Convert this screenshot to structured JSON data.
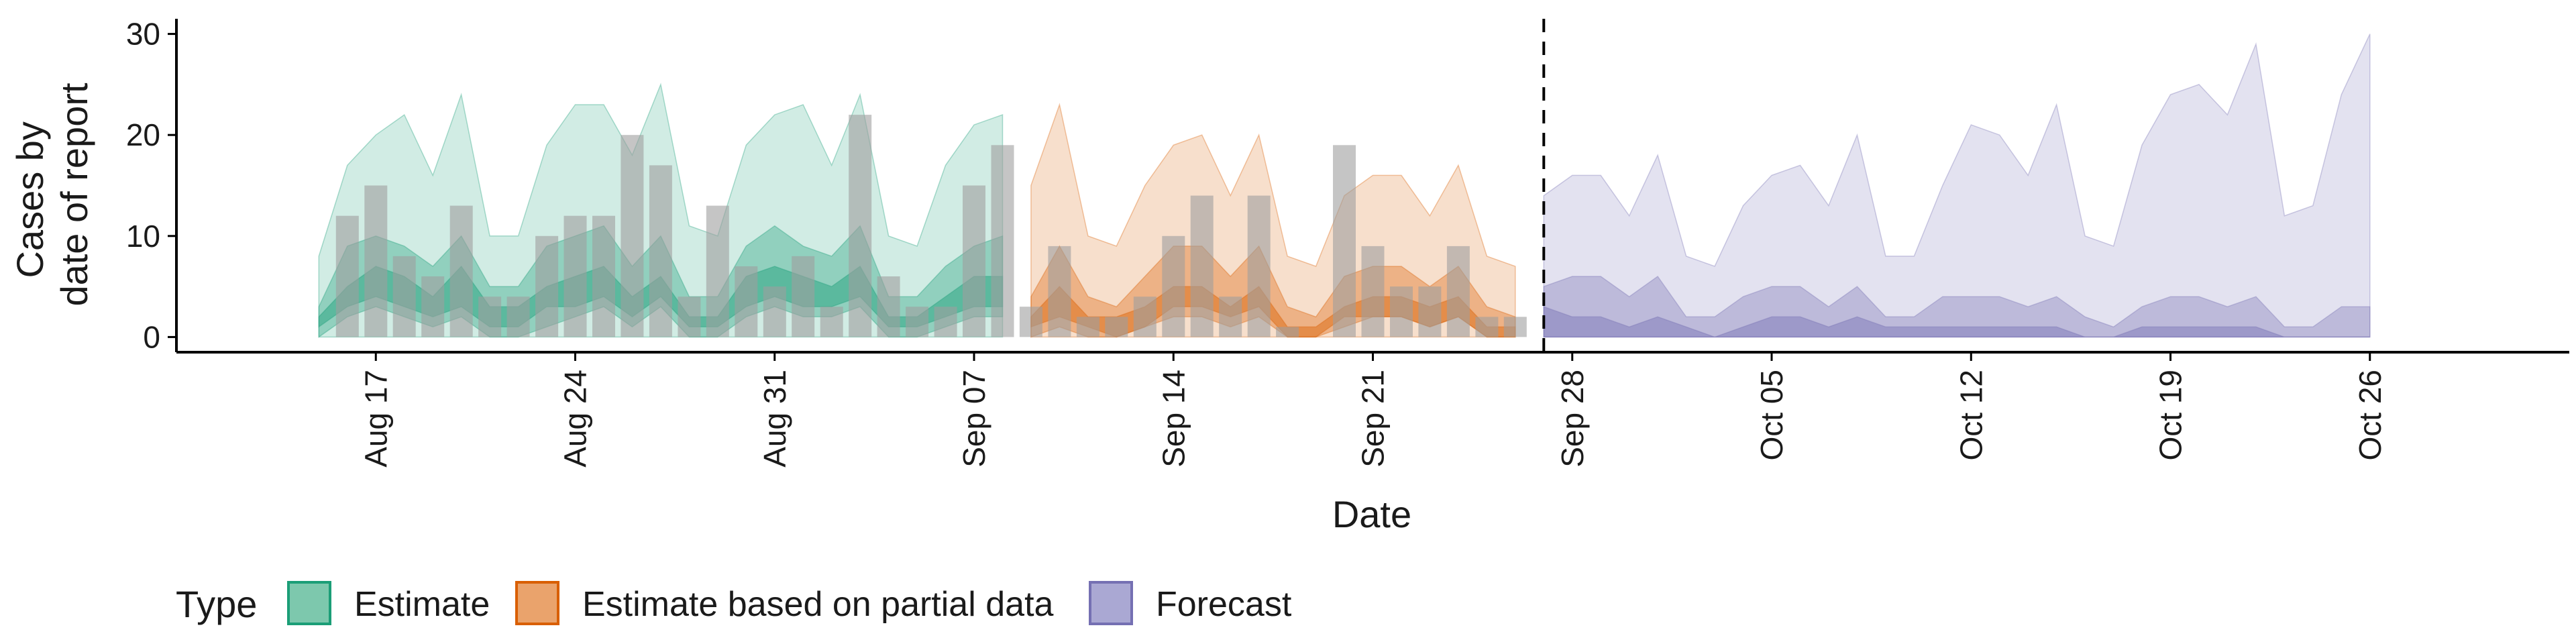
{
  "chart_data": {
    "type": "area",
    "xlabel": "Date",
    "ylabel": [
      "Cases by",
      "date of report"
    ],
    "ylim": [
      -1.5,
      31.5
    ],
    "y_ticks": [
      0,
      10,
      20,
      30
    ],
    "x_range": [
      "2020-08-10",
      "2020-11-02"
    ],
    "x_ticks": [
      {
        "date": "2020-08-17",
        "label": "Aug 17"
      },
      {
        "date": "2020-08-24",
        "label": "Aug 24"
      },
      {
        "date": "2020-08-31",
        "label": "Aug 31"
      },
      {
        "date": "2020-09-07",
        "label": "Sep 07"
      },
      {
        "date": "2020-09-14",
        "label": "Sep 14"
      },
      {
        "date": "2020-09-21",
        "label": "Sep 21"
      },
      {
        "date": "2020-09-28",
        "label": "Sep 28"
      },
      {
        "date": "2020-10-05",
        "label": "Oct 05"
      },
      {
        "date": "2020-10-12",
        "label": "Oct 12"
      },
      {
        "date": "2020-10-19",
        "label": "Oct 19"
      },
      {
        "date": "2020-10-26",
        "label": "Oct 26"
      }
    ],
    "forecast_line_date": "2020-09-27",
    "grid": false,
    "legend": {
      "position": "bottom-left",
      "title": "Type",
      "entries": [
        {
          "label": "Estimate",
          "fill": "#7dc8ad",
          "stroke": "#1b9e77"
        },
        {
          "label": "Estimate based on partial data",
          "fill": "#eaa36c",
          "stroke": "#d95f02"
        },
        {
          "label": "Forecast",
          "fill": "#aaa8d3",
          "stroke": "#7570b3"
        }
      ]
    },
    "colors": {
      "Estimate": "#1b9e77",
      "Estimate based on partial data": "#d95f02",
      "Forecast": "#7570b3",
      "reported_bars": "#9e9e9e"
    },
    "reported_cases": {
      "start_date": "2020-08-16",
      "values": [
        12,
        15,
        8,
        6,
        13,
        4,
        4,
        10,
        12,
        12,
        20,
        17,
        4,
        13,
        7,
        5,
        8,
        3,
        22,
        6,
        3,
        3,
        15,
        19,
        3,
        9,
        2,
        2,
        4,
        10,
        14,
        4,
        14,
        1,
        0,
        19,
        9,
        5,
        5,
        9,
        2,
        2
      ]
    },
    "series": [
      {
        "name": "Estimate",
        "start_date": "2020-08-15",
        "upper_90": [
          8,
          17,
          20,
          22,
          16,
          24,
          10,
          10,
          19,
          23,
          23,
          18,
          25,
          11,
          10,
          19,
          22,
          23,
          17,
          24,
          10,
          9,
          17,
          21,
          22
        ],
        "lower_90": [
          0,
          0,
          0,
          0,
          0,
          0,
          0,
          0,
          0,
          0,
          0,
          0,
          0,
          0,
          0,
          0,
          0,
          0,
          0,
          0,
          0,
          0,
          0,
          0,
          0
        ],
        "upper_50": [
          3,
          9,
          10,
          9,
          7,
          10,
          5,
          5,
          9,
          10,
          11,
          7,
          10,
          4,
          4,
          9,
          11,
          9,
          8,
          11,
          4,
          4,
          7,
          9,
          10
        ],
        "lower_50": [
          0,
          2,
          3,
          2,
          1,
          2,
          0,
          0,
          1,
          2,
          3,
          1,
          3,
          0,
          0,
          2,
          3,
          2,
          2,
          3,
          0,
          0,
          1,
          2,
          2
        ],
        "upper_20": [
          2,
          5,
          7,
          6,
          4,
          7,
          3,
          3,
          5,
          6,
          7,
          4,
          6,
          2,
          2,
          6,
          7,
          6,
          5,
          7,
          2,
          2,
          4,
          6,
          6
        ],
        "lower_20": [
          1,
          3,
          4,
          3,
          2,
          3,
          1,
          1,
          3,
          3,
          4,
          2,
          4,
          1,
          1,
          3,
          4,
          3,
          3,
          4,
          1,
          1,
          2,
          3,
          3
        ]
      },
      {
        "name": "Estimate based on partial data",
        "start_date": "2020-09-09",
        "upper_90": [
          15,
          23,
          10,
          9,
          15,
          19,
          20,
          14,
          20,
          8,
          7,
          14,
          16,
          16,
          12,
          17,
          8,
          7
        ],
        "lower_90": [
          0,
          0,
          0,
          0,
          0,
          0,
          0,
          0,
          0,
          0,
          0,
          0,
          0,
          0,
          0,
          0,
          0,
          0
        ],
        "upper_50": [
          4,
          9,
          4,
          3,
          6,
          9,
          9,
          6,
          9,
          3,
          2,
          6,
          7,
          7,
          5,
          7,
          3,
          2
        ],
        "lower_50": [
          0,
          1,
          0,
          0,
          1,
          2,
          2,
          1,
          2,
          0,
          0,
          1,
          2,
          2,
          1,
          2,
          0,
          0
        ],
        "upper_20": [
          2,
          5,
          2,
          2,
          3,
          5,
          5,
          3,
          5,
          1,
          1,
          3,
          4,
          4,
          3,
          4,
          1,
          1
        ],
        "lower_20": [
          1,
          2,
          1,
          0,
          1,
          3,
          3,
          2,
          3,
          0,
          0,
          2,
          2,
          2,
          1,
          2,
          0,
          0
        ]
      },
      {
        "name": "Forecast",
        "start_date": "2020-09-27",
        "upper_90": [
          14,
          16,
          16,
          12,
          18,
          8,
          7,
          13,
          16,
          17,
          13,
          20,
          8,
          8,
          15,
          21,
          20,
          16,
          23,
          10,
          9,
          19,
          24,
          25,
          22,
          29,
          12,
          13,
          24,
          30
        ],
        "lower_90": [
          0,
          0,
          0,
          0,
          0,
          0,
          0,
          0,
          0,
          0,
          0,
          0,
          0,
          0,
          0,
          0,
          0,
          0,
          0,
          0,
          0,
          0,
          0,
          0,
          0,
          0,
          0,
          0,
          0,
          0
        ],
        "upper_50": [
          5,
          6,
          6,
          4,
          6,
          2,
          2,
          4,
          5,
          5,
          3,
          5,
          2,
          2,
          4,
          4,
          4,
          3,
          4,
          2,
          1,
          3,
          4,
          4,
          3,
          4,
          1,
          1,
          3,
          3
        ],
        "lower_50": [
          0,
          0,
          0,
          0,
          0,
          0,
          0,
          0,
          0,
          0,
          0,
          0,
          0,
          0,
          0,
          0,
          0,
          0,
          0,
          0,
          0,
          0,
          0,
          0,
          0,
          0,
          0,
          0,
          0,
          0
        ],
        "upper_20": [
          3,
          2,
          2,
          1,
          2,
          1,
          0,
          1,
          2,
          2,
          1,
          2,
          1,
          1,
          1,
          1,
          1,
          1,
          1,
          0,
          0,
          1,
          1,
          1,
          1,
          1,
          0,
          0,
          0,
          0
        ],
        "lower_20": [
          0,
          0,
          0,
          0,
          0,
          0,
          0,
          0,
          0,
          0,
          0,
          0,
          0,
          0,
          0,
          0,
          0,
          0,
          0,
          0,
          0,
          0,
          0,
          0,
          0,
          0,
          0,
          0,
          0,
          0
        ]
      }
    ]
  }
}
